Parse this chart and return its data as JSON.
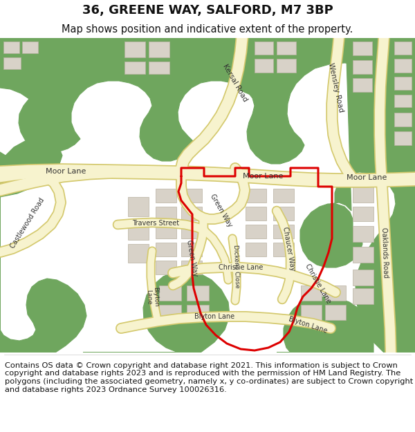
{
  "title": "36, GREENE WAY, SALFORD, M7 3BP",
  "subtitle": "Map shows position and indicative extent of the property.",
  "footer": "Contains OS data © Crown copyright and database right 2021. This information is subject to Crown copyright and database rights 2023 and is reproduced with the permission of HM Land Registry. The polygons (including the associated geometry, namely x, y co-ordinates) are subject to Crown copyright and database rights 2023 Ordnance Survey 100026316.",
  "bg_color": "#f0eeea",
  "green_color": "#6fa65e",
  "road_color": "#f7f3ce",
  "road_outline": "#d4c96e",
  "building_color": "#d8d2c8",
  "building_outline": "#b8b0a0",
  "red_color": "#dd0000",
  "white_bg": "#ffffff",
  "title_fontsize": 13,
  "subtitle_fontsize": 10.5,
  "footer_fontsize": 8.2,
  "label_fontsize": 7.5,
  "label_color": "#333333"
}
